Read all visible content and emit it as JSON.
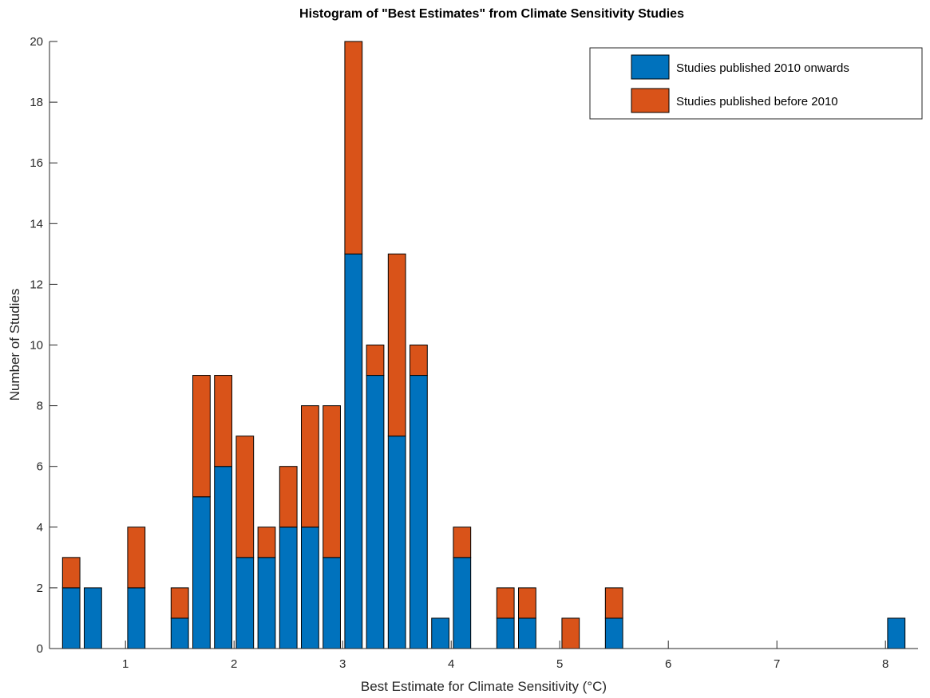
{
  "chart_data": {
    "type": "bar",
    "stacked": true,
    "title": "Histogram of \"Best Estimates\" from Climate Sensitivity Studies",
    "xlabel": "Best Estimate for Climate Sensitivity (°C)",
    "ylabel": "Number of Studies",
    "xlim": [
      0.3,
      8.3
    ],
    "ylim": [
      0,
      20
    ],
    "xticks": [
      1,
      2,
      3,
      4,
      5,
      6,
      7,
      8
    ],
    "yticks": [
      0,
      2,
      4,
      6,
      8,
      10,
      12,
      14,
      16,
      18,
      20
    ],
    "x": [
      0.5,
      0.7,
      1.1,
      1.5,
      1.7,
      1.9,
      2.1,
      2.3,
      2.5,
      2.7,
      2.9,
      3.1,
      3.3,
      3.5,
      3.7,
      3.9,
      4.1,
      4.5,
      4.7,
      5.1,
      5.5,
      8.1
    ],
    "series": [
      {
        "name": "Studies published 2010 onwards",
        "color": "#0072BD",
        "values": [
          2,
          2,
          2,
          1,
          5,
          6,
          3,
          3,
          4,
          4,
          3,
          13,
          9,
          7,
          9,
          1,
          3,
          1,
          1,
          0,
          1,
          1
        ]
      },
      {
        "name": "Studies published before 2010",
        "color": "#D95319",
        "values": [
          1,
          0,
          2,
          1,
          4,
          3,
          4,
          1,
          2,
          4,
          5,
          7,
          1,
          6,
          1,
          0,
          1,
          1,
          1,
          1,
          1,
          0
        ]
      }
    ],
    "grid": false,
    "legend_position": "top-right"
  }
}
